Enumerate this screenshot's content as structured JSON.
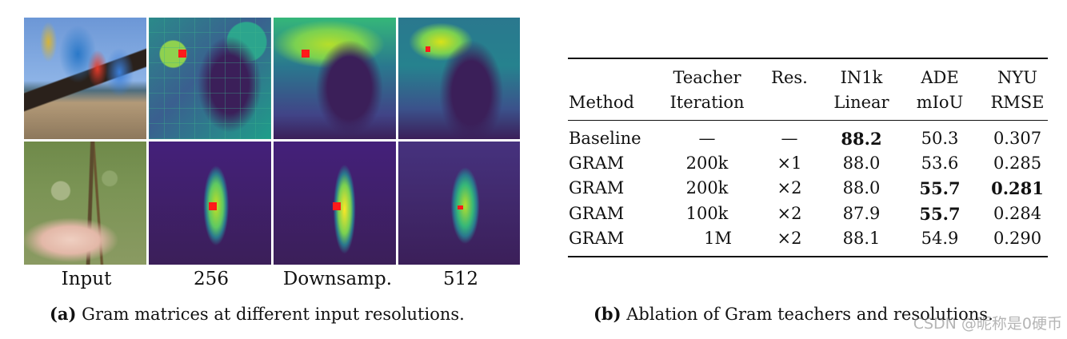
{
  "figure_a": {
    "column_labels": [
      "Input",
      "256",
      "Downsamp.",
      "512"
    ],
    "caption_tag": "(a)",
    "caption_text": "Gram matrices at different input resolutions."
  },
  "figure_b": {
    "caption_tag": "(b)",
    "caption_text": "Ablation of Gram teachers and resolutions."
  },
  "table": {
    "headers": [
      [
        "Method"
      ],
      [
        "Teacher",
        "Iteration"
      ],
      [
        "Res."
      ],
      [
        "IN1k",
        "Linear"
      ],
      [
        "ADE",
        "mIoU"
      ],
      [
        "NYU",
        "RMSE"
      ]
    ],
    "rows": [
      [
        "Baseline",
        "—",
        "—",
        "88.2",
        "50.3",
        "0.307"
      ],
      [
        "GRAM",
        "200k",
        "×1",
        "88.0",
        "53.6",
        "0.285"
      ],
      [
        "GRAM",
        "200k",
        "×2",
        "88.0",
        "55.7",
        "0.281"
      ],
      [
        "GRAM",
        "100k",
        "×2",
        "87.9",
        "55.7",
        "0.284"
      ],
      [
        "GRAM",
        "1M",
        "×2",
        "88.1",
        "54.9",
        "0.290"
      ]
    ]
  },
  "watermark": "CSDN @昵称是0硬币"
}
